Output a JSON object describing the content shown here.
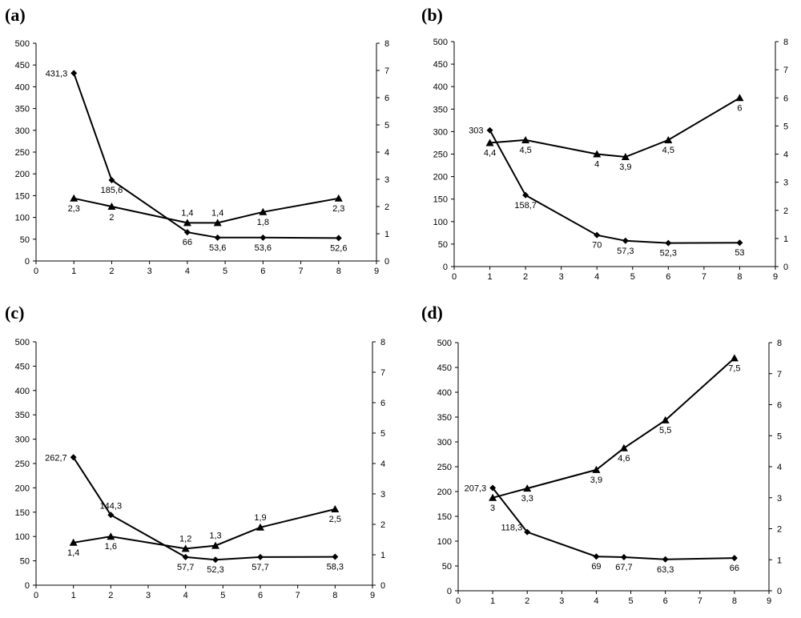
{
  "chart_data": [
    {
      "panel_label": "(a)",
      "type": "line",
      "x_ticks": [
        "0",
        "1",
        "2",
        "3",
        "4",
        "5",
        "6",
        "7",
        "8",
        "9"
      ],
      "y_left_ticks": [
        "0",
        "50",
        "100",
        "150",
        "200",
        "250",
        "300",
        "350",
        "400",
        "450",
        "500"
      ],
      "y_right_ticks": [
        "0",
        "1",
        "2",
        "3",
        "4",
        "5",
        "6",
        "7",
        "8"
      ],
      "xlim": [
        0,
        9
      ],
      "ylim_left": [
        0,
        500
      ],
      "ylim_right": [
        0,
        8
      ],
      "series": [
        {
          "name": "diamond",
          "axis": "left",
          "marker": "diamond",
          "x": [
            1,
            2,
            4,
            4.8,
            6,
            8
          ],
          "values": [
            431.3,
            185.6,
            66,
            53.6,
            53.6,
            52.6
          ],
          "labels": [
            "431,3",
            "185,6",
            "66",
            "53,6",
            "53,6",
            "52,6"
          ]
        },
        {
          "name": "triangle",
          "axis": "right",
          "marker": "triangle",
          "x": [
            1,
            2,
            4,
            4.8,
            6,
            8
          ],
          "values": [
            2.3,
            2,
            1.4,
            1.4,
            1.8,
            2.3
          ],
          "labels": [
            "2,3",
            "2",
            "1,4",
            "1,4",
            "1,8",
            "2,3"
          ]
        }
      ]
    },
    {
      "panel_label": "(b)",
      "type": "line",
      "x_ticks": [
        "0",
        "1",
        "2",
        "3",
        "4",
        "5",
        "6",
        "7",
        "8",
        "9"
      ],
      "y_left_ticks": [
        "0",
        "50",
        "100",
        "150",
        "200",
        "250",
        "300",
        "350",
        "400",
        "450",
        "500"
      ],
      "y_right_ticks": [
        "0",
        "1",
        "2",
        "3",
        "4",
        "5",
        "6",
        "7",
        "8"
      ],
      "xlim": [
        0,
        9
      ],
      "ylim_left": [
        0,
        500
      ],
      "ylim_right": [
        0,
        8
      ],
      "series": [
        {
          "name": "diamond",
          "axis": "left",
          "marker": "diamond",
          "x": [
            1,
            2,
            4,
            4.8,
            6,
            8
          ],
          "values": [
            303,
            158.7,
            70,
            57.3,
            52.3,
            53
          ],
          "labels": [
            "303",
            "158,7",
            "70",
            "57,3",
            "52,3",
            "53"
          ]
        },
        {
          "name": "triangle",
          "axis": "right",
          "marker": "triangle",
          "x": [
            1,
            2,
            4,
            4.8,
            6,
            8
          ],
          "values": [
            4.4,
            4.5,
            4,
            3.9,
            4.5,
            6
          ],
          "labels": [
            "4,4",
            "4,5",
            "4",
            "3,9",
            "4,5",
            "6"
          ]
        }
      ]
    },
    {
      "panel_label": "(c)",
      "type": "line",
      "x_ticks": [
        "0",
        "1",
        "2",
        "3",
        "4",
        "5",
        "6",
        "7",
        "8",
        "9"
      ],
      "y_left_ticks": [
        "0",
        "50",
        "100",
        "150",
        "200",
        "250",
        "300",
        "350",
        "400",
        "450",
        "500"
      ],
      "y_right_ticks": [
        "0",
        "1",
        "2",
        "3",
        "4",
        "5",
        "6",
        "7",
        "8"
      ],
      "xlim": [
        0,
        9
      ],
      "ylim_left": [
        0,
        500
      ],
      "ylim_right": [
        0,
        8
      ],
      "series": [
        {
          "name": "diamond",
          "axis": "left",
          "marker": "diamond",
          "x": [
            1,
            2,
            4,
            4.8,
            6,
            8
          ],
          "values": [
            262.7,
            144.3,
            57.7,
            52.3,
            57.7,
            58.3
          ],
          "labels": [
            "262,7",
            "144,3",
            "57,7",
            "52,3",
            "57,7",
            "58,3"
          ]
        },
        {
          "name": "triangle",
          "axis": "right",
          "marker": "triangle",
          "x": [
            1,
            2,
            4,
            4.8,
            6,
            8
          ],
          "values": [
            1.4,
            1.6,
            1.2,
            1.3,
            1.9,
            2.5
          ],
          "labels": [
            "1,4",
            "1,6",
            "1,2",
            "1,3",
            "1,9",
            "2,5"
          ]
        }
      ]
    },
    {
      "panel_label": "(d)",
      "type": "line",
      "x_ticks": [
        "0",
        "1",
        "2",
        "3",
        "4",
        "5",
        "6",
        "7",
        "8",
        "9"
      ],
      "y_left_ticks": [
        "0",
        "50",
        "100",
        "150",
        "200",
        "250",
        "300",
        "350",
        "400",
        "450",
        "500"
      ],
      "y_right_ticks": [
        "0",
        "1",
        "2",
        "3",
        "4",
        "5",
        "6",
        "7",
        "8"
      ],
      "xlim": [
        0,
        9
      ],
      "ylim_left": [
        0,
        500
      ],
      "ylim_right": [
        0,
        8
      ],
      "series": [
        {
          "name": "diamond",
          "axis": "left",
          "marker": "diamond",
          "x": [
            1,
            2,
            4,
            4.8,
            6,
            8
          ],
          "values": [
            207.3,
            118.3,
            69,
            67.7,
            63.3,
            66
          ],
          "labels": [
            "207,3",
            "118,3",
            "69",
            "67,7",
            "63,3",
            "66"
          ]
        },
        {
          "name": "triangle",
          "axis": "right",
          "marker": "triangle",
          "x": [
            1,
            2,
            4,
            4.8,
            6,
            8
          ],
          "values": [
            3,
            3.3,
            3.9,
            4.6,
            5.5,
            7.5
          ],
          "labels": [
            "3",
            "3,3",
            "3,9",
            "4,6",
            "5,5",
            "7,5"
          ]
        }
      ]
    }
  ]
}
